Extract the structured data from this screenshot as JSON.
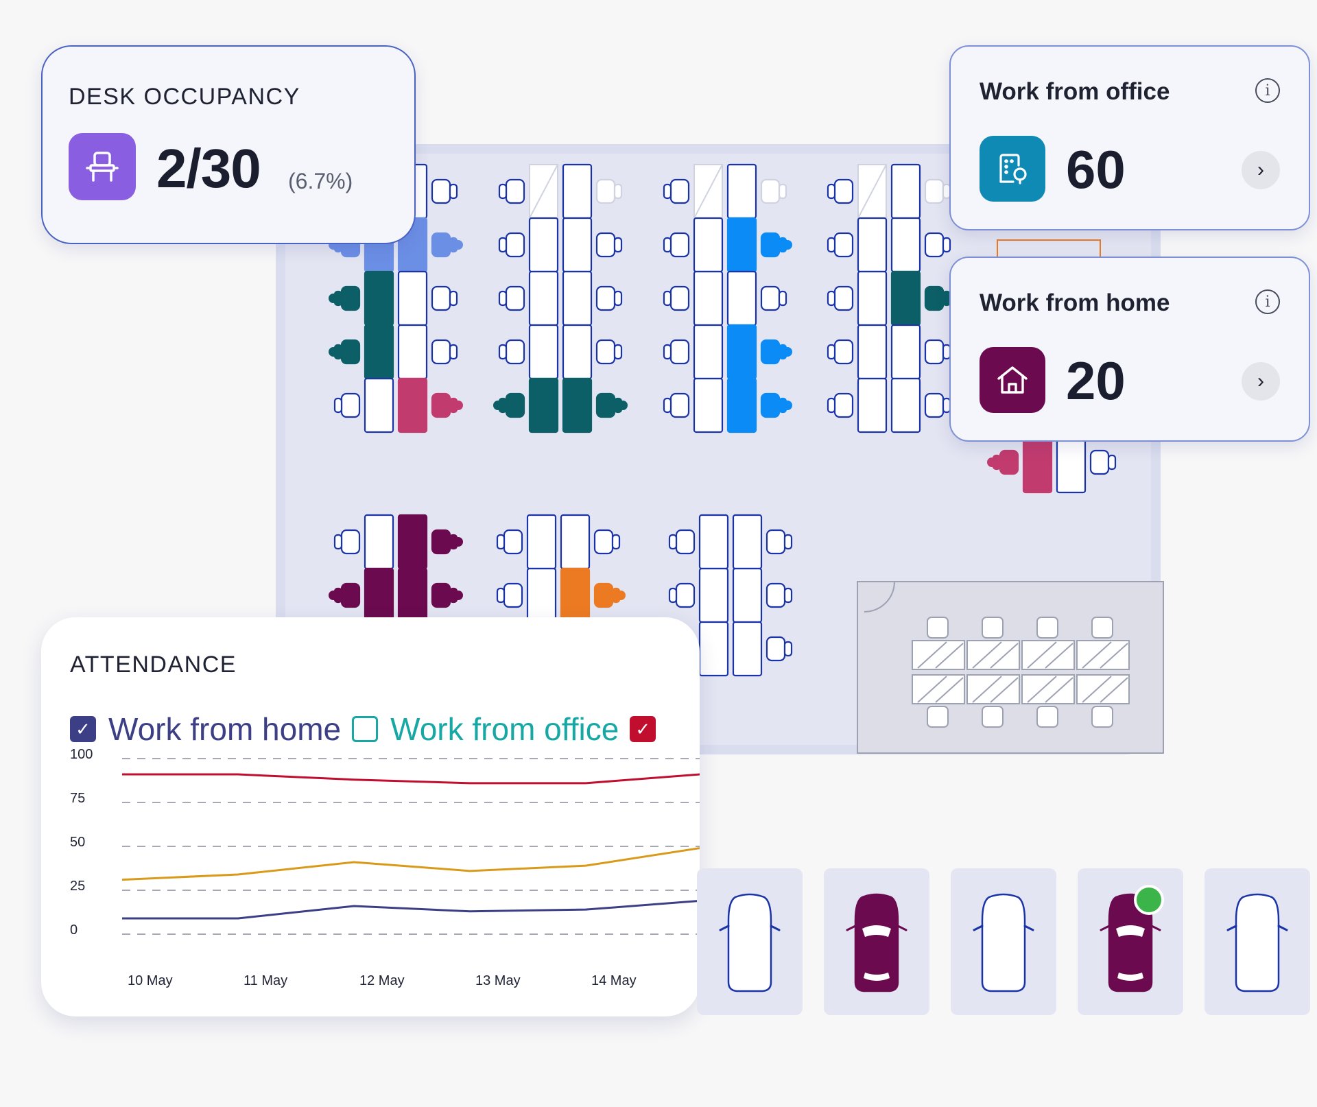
{
  "desk_occupancy": {
    "title": "DESK OCCUPANCY",
    "value": "2/30",
    "percent": "(6.7%)",
    "icon": "chair-icon",
    "icon_color": "#8a5ee0"
  },
  "work_from_office": {
    "title": "Work from office",
    "value": "60",
    "icon": "building-icon",
    "icon_color": "#0e8ab5",
    "info_glyph": "i",
    "arrow_glyph": "›"
  },
  "work_from_home": {
    "title": "Work from home",
    "value": "20",
    "icon": "house-icon",
    "icon_color": "#6b0a4e",
    "info_glyph": "i",
    "arrow_glyph": "›"
  },
  "attendance": {
    "title": "ATTENDANCE",
    "legend": [
      {
        "label": "Work from home",
        "color": "#3d3f86",
        "checked": true,
        "check_glyph": "✓"
      },
      {
        "label": "Work from office",
        "color": "#17a8a6",
        "checked": false,
        "check_glyph": ""
      },
      {
        "label": "",
        "color": "#c10e2e",
        "checked": true,
        "check_glyph": "✓"
      }
    ],
    "chart_data": {
      "type": "line",
      "x": [
        "10 May",
        "11 May",
        "12 May",
        "13 May",
        "14 May",
        ""
      ],
      "y_ticks": [
        100,
        75,
        50,
        25,
        0
      ],
      "ylim": [
        0,
        100
      ],
      "grid": true,
      "series": [
        {
          "color": "#c10e2e",
          "values": [
            91,
            91,
            88,
            86,
            86,
            91
          ]
        },
        {
          "color": "#d99a1a",
          "values": [
            31,
            34,
            41,
            36,
            39,
            49
          ]
        },
        {
          "color": "#3d3f86",
          "values": [
            9,
            9,
            16,
            13,
            14,
            19
          ]
        }
      ]
    }
  },
  "parking": [
    {
      "occupied": false
    },
    {
      "occupied": true,
      "color": "#6b0a4e"
    },
    {
      "occupied": false
    },
    {
      "occupied": true,
      "color": "#6b0a4e",
      "badge": true
    },
    {
      "occupied": false
    }
  ]
}
